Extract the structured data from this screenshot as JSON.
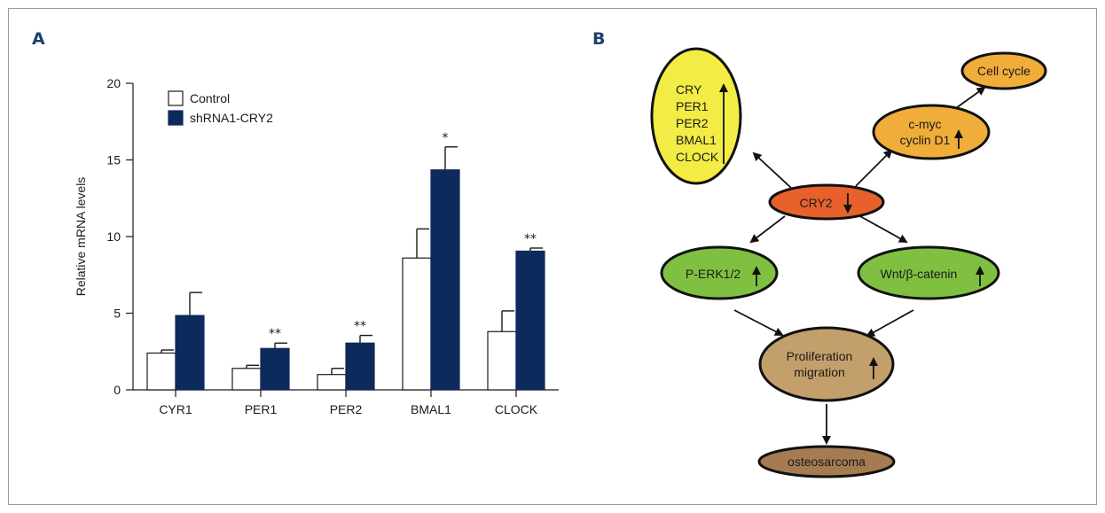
{
  "panel_a_label": "A",
  "panel_b_label": "B",
  "chart_data": {
    "type": "bar",
    "title": "",
    "xlabel": "",
    "ylabel": "Relative mRNA levels",
    "ylim": [
      0,
      20
    ],
    "yticks": [
      0,
      5,
      10,
      15,
      20
    ],
    "categories": [
      "CYR1",
      "PER1",
      "PER2",
      "BMAL1",
      "CLOCK"
    ],
    "series": [
      {
        "name": "Control",
        "values": [
          2.4,
          1.4,
          1.0,
          8.6,
          3.8
        ],
        "errors": [
          0.2,
          0.2,
          0.4,
          1.9,
          1.35
        ],
        "color": "#ffffff"
      },
      {
        "name": "shRNA1-CRY2",
        "values": [
          4.85,
          2.7,
          3.05,
          14.35,
          9.05
        ],
        "errors": [
          1.5,
          0.35,
          0.5,
          1.5,
          0.2
        ],
        "color": "#0d2a5c"
      }
    ],
    "significance": [
      "",
      "**",
      "**",
      "*",
      "**"
    ],
    "legend_position": "top-left",
    "grid": false
  },
  "diagram": {
    "nodes": {
      "yellow_genes": [
        "CRY",
        "PER1",
        "PER2",
        "BMAL1",
        "CLOCK"
      ],
      "cell_cycle": "Cell cycle",
      "cmyc_lines": [
        "c-myc",
        "cyclin D1"
      ],
      "cry2": "CRY2",
      "perk": "P-ERK1/2",
      "wnt": "Wnt/β-catenin",
      "prolif_lines": [
        "Proliferation",
        "migration"
      ],
      "osteosarcoma": "osteosarcoma"
    },
    "colors": {
      "yellow": "#f2ec45",
      "orange_light": "#f0ad3a",
      "orange_red": "#e8612c",
      "green": "#80c041",
      "tan": "#c3a06b",
      "brown": "#a57c52"
    }
  }
}
